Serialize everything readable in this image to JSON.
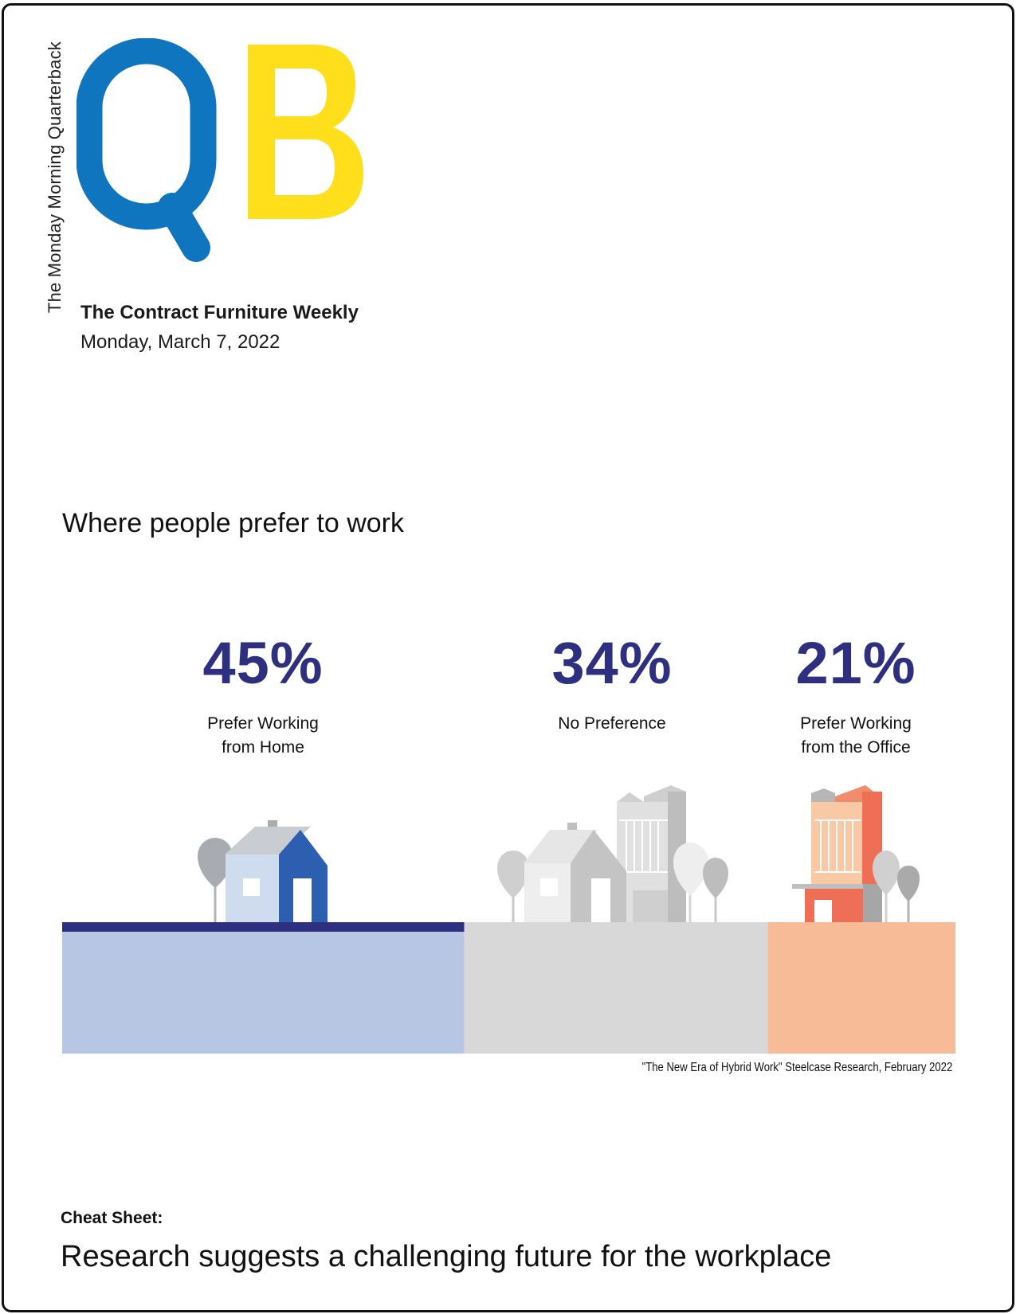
{
  "masthead": {
    "tagline": "The Monday Morning Quarterback",
    "logo_letters": [
      "Q",
      "B"
    ],
    "logo_colors": {
      "q": "#0e75be",
      "b": "#ffdf1b"
    },
    "publication": "The Contract Furniture Weekly",
    "date": "Monday, March 7, 2022"
  },
  "infographic": {
    "title": "Where people prefer to work",
    "source": "\"The New Era of  Hybrid Work\" Steelcase Research, February 2022"
  },
  "chart_data": {
    "type": "bar",
    "title": "Where people prefer to work",
    "categories": [
      "Prefer Working from Home",
      "No Preference",
      "Prefer Working from the Office"
    ],
    "values": [
      45,
      34,
      21
    ],
    "unit": "%",
    "orientation": "horizontal-stacked",
    "colors": [
      "#b6c6e3",
      "#d8d8d8",
      "#f8bb98"
    ]
  },
  "stats": [
    {
      "value": "45%",
      "label": "Prefer Working\nfrom Home"
    },
    {
      "value": "34%",
      "label": "No Preference"
    },
    {
      "value": "21%",
      "label": "Prefer Working\nfrom the Office"
    }
  ],
  "footer": {
    "cheat_label": "Cheat Sheet:",
    "headline": "Research suggests a challenging future for the workplace"
  }
}
